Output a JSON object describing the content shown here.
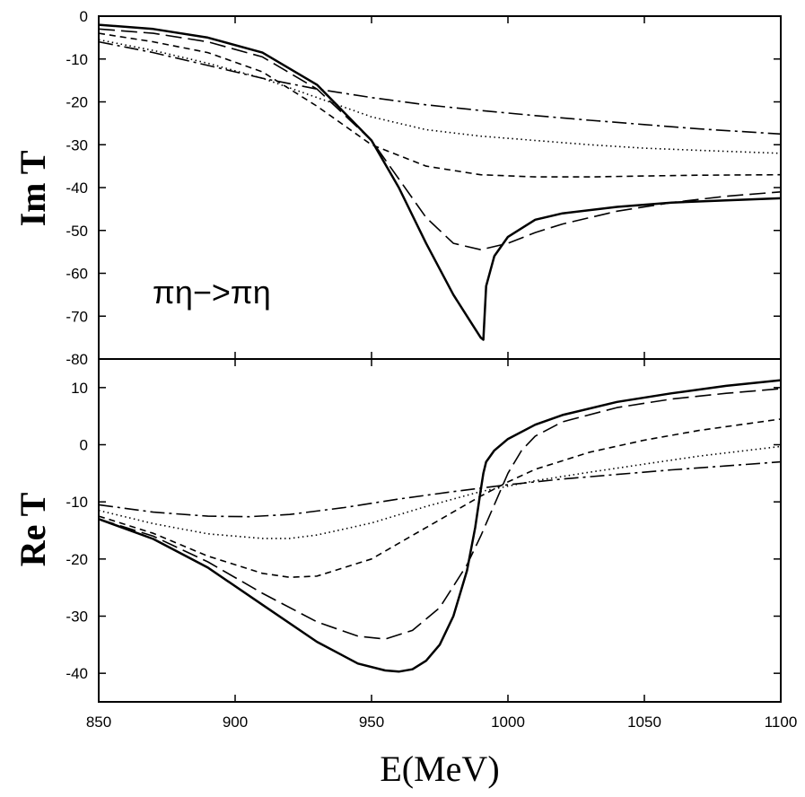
{
  "chart_data": [
    {
      "type": "line",
      "panel": "top",
      "ylabel": "Im T",
      "annotation": "πη−>πη",
      "xlim": [
        850,
        1100
      ],
      "ylim": [
        -80,
        0
      ],
      "yticks": [
        0,
        -10,
        -20,
        -30,
        -40,
        -50,
        -60,
        -70,
        -80
      ],
      "ytick_labels": [
        "0",
        "-10",
        "-20",
        "-30",
        "-40",
        "-50",
        "-60",
        "-70",
        "-80"
      ],
      "grid": false,
      "series": [
        {
          "style": "solid",
          "x": [
            850,
            870,
            890,
            910,
            930,
            950,
            960,
            970,
            980,
            985,
            988,
            990,
            991,
            992,
            995,
            1000,
            1010,
            1020,
            1040,
            1060,
            1080,
            1100
          ],
          "y": [
            -2,
            -3,
            -5,
            -8.5,
            -16,
            -29,
            -40,
            -53,
            -65,
            -70,
            -73,
            -75,
            -75.5,
            -63,
            -56,
            -51.5,
            -47.5,
            -46,
            -44.5,
            -43.5,
            -43,
            -42.5
          ]
        },
        {
          "style": "long-dash",
          "x": [
            850,
            870,
            890,
            910,
            930,
            950,
            960,
            970,
            980,
            990,
            1000,
            1010,
            1020,
            1040,
            1060,
            1080,
            1100
          ],
          "y": [
            -3,
            -4,
            -6,
            -9.5,
            -17,
            -29,
            -38,
            -47,
            -53,
            -54.5,
            -53,
            -50.5,
            -48.5,
            -45.5,
            -43.5,
            -42,
            -41
          ]
        },
        {
          "style": "short-dash",
          "x": [
            850,
            870,
            890,
            910,
            930,
            950,
            970,
            990,
            1010,
            1030,
            1050,
            1070,
            1100
          ],
          "y": [
            -4,
            -6,
            -8.5,
            -13,
            -21,
            -30,
            -35,
            -37,
            -37.5,
            -37.5,
            -37.3,
            -37.1,
            -37
          ]
        },
        {
          "style": "dotted",
          "x": [
            850,
            870,
            890,
            910,
            930,
            950,
            970,
            990,
            1010,
            1030,
            1050,
            1070,
            1100
          ],
          "y": [
            -5.5,
            -8,
            -11,
            -14.5,
            -19,
            -23.5,
            -26.5,
            -28,
            -29,
            -30,
            -30.8,
            -31.3,
            -32
          ]
        },
        {
          "style": "dash-dot",
          "x": [
            850,
            870,
            890,
            910,
            930,
            950,
            970,
            990,
            1010,
            1030,
            1050,
            1070,
            1100
          ],
          "y": [
            -6,
            -8.5,
            -11.5,
            -14.5,
            -17,
            -19,
            -20.7,
            -22,
            -23.2,
            -24.3,
            -25.3,
            -26.3,
            -27.5
          ]
        }
      ]
    },
    {
      "type": "line",
      "panel": "bottom",
      "ylabel": "Re T",
      "xlabel": "E(MeV)",
      "xlim": [
        850,
        1100
      ],
      "ylim": [
        -45,
        15
      ],
      "xticks": [
        850,
        900,
        950,
        1000,
        1050,
        1100
      ],
      "xtick_labels": [
        "850",
        "900",
        "950",
        "1000",
        "1050",
        "1100"
      ],
      "yticks": [
        10,
        0,
        -10,
        -20,
        -30,
        -40
      ],
      "ytick_labels": [
        "10",
        "0",
        "-10",
        "-20",
        "-30",
        "-40"
      ],
      "grid": false,
      "series": [
        {
          "style": "solid",
          "x": [
            850,
            870,
            890,
            910,
            930,
            945,
            955,
            960,
            965,
            970,
            975,
            980,
            985,
            988,
            990,
            991,
            992,
            995,
            1000,
            1010,
            1020,
            1040,
            1060,
            1080,
            1100
          ],
          "y": [
            -13,
            -16.5,
            -21.5,
            -28,
            -34.5,
            -38.3,
            -39.5,
            -39.7,
            -39.3,
            -37.8,
            -35,
            -30,
            -22,
            -14.5,
            -8,
            -5,
            -3,
            -1,
            1,
            3.5,
            5.2,
            7.5,
            9,
            10.3,
            11.3
          ]
        },
        {
          "style": "long-dash",
          "x": [
            850,
            870,
            890,
            910,
            930,
            945,
            955,
            965,
            975,
            985,
            990,
            995,
            1000,
            1005,
            1010,
            1020,
            1040,
            1060,
            1080,
            1100
          ],
          "y": [
            -13,
            -16,
            -20.5,
            -26,
            -31,
            -33.5,
            -34,
            -32.5,
            -28.5,
            -21,
            -16,
            -10.5,
            -5,
            -1,
            1.5,
            4,
            6.5,
            8,
            9,
            9.8
          ]
        },
        {
          "style": "short-dash",
          "x": [
            850,
            870,
            890,
            910,
            920,
            930,
            950,
            970,
            990,
            1000,
            1010,
            1030,
            1050,
            1070,
            1100
          ],
          "y": [
            -12.5,
            -15.5,
            -19.5,
            -22.5,
            -23.2,
            -23,
            -20,
            -14.5,
            -9,
            -6.5,
            -4.3,
            -1.3,
            0.8,
            2.5,
            4.5
          ]
        },
        {
          "style": "dotted",
          "x": [
            850,
            870,
            890,
            910,
            920,
            930,
            950,
            970,
            990,
            1010,
            1030,
            1050,
            1070,
            1100
          ],
          "y": [
            -11.5,
            -13.8,
            -15.6,
            -16.4,
            -16.4,
            -15.8,
            -13.7,
            -10.8,
            -8.2,
            -6.3,
            -4.8,
            -3.4,
            -2,
            -0.3
          ]
        },
        {
          "style": "dash-dot",
          "x": [
            850,
            870,
            890,
            905,
            920,
            940,
            960,
            980,
            1000,
            1020,
            1040,
            1060,
            1080,
            1100
          ],
          "y": [
            -10.5,
            -11.8,
            -12.5,
            -12.6,
            -12.2,
            -11,
            -9.5,
            -8.2,
            -7,
            -6,
            -5.2,
            -4.4,
            -3.7,
            -3
          ]
        }
      ]
    }
  ]
}
